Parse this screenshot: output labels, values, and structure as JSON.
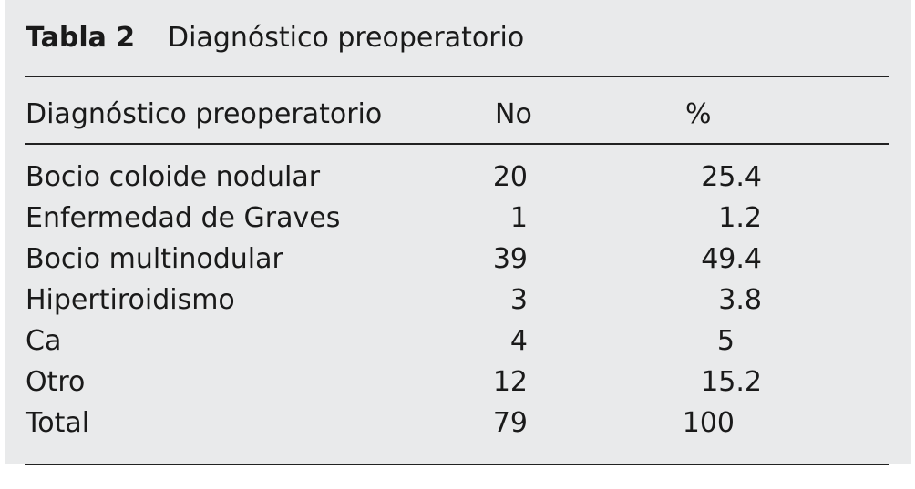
{
  "header": {
    "label": "Tabla 2",
    "title": "Diagnóstico preoperatorio"
  },
  "table": {
    "columns": [
      "Diagnóstico preoperatorio",
      "No",
      "%"
    ],
    "rows": [
      [
        "Bocio coloide nodular",
        "20",
        "25.4"
      ],
      [
        "Enfermedad de Graves",
        "1",
        "1.2"
      ],
      [
        "Bocio multinodular",
        "39",
        "49.4"
      ],
      [
        "Hipertiroidismo",
        "3",
        "3.8"
      ],
      [
        "Ca",
        "4",
        "5"
      ],
      [
        "Otro",
        "12",
        "15.2"
      ],
      [
        "Total",
        "79",
        "100"
      ]
    ]
  }
}
